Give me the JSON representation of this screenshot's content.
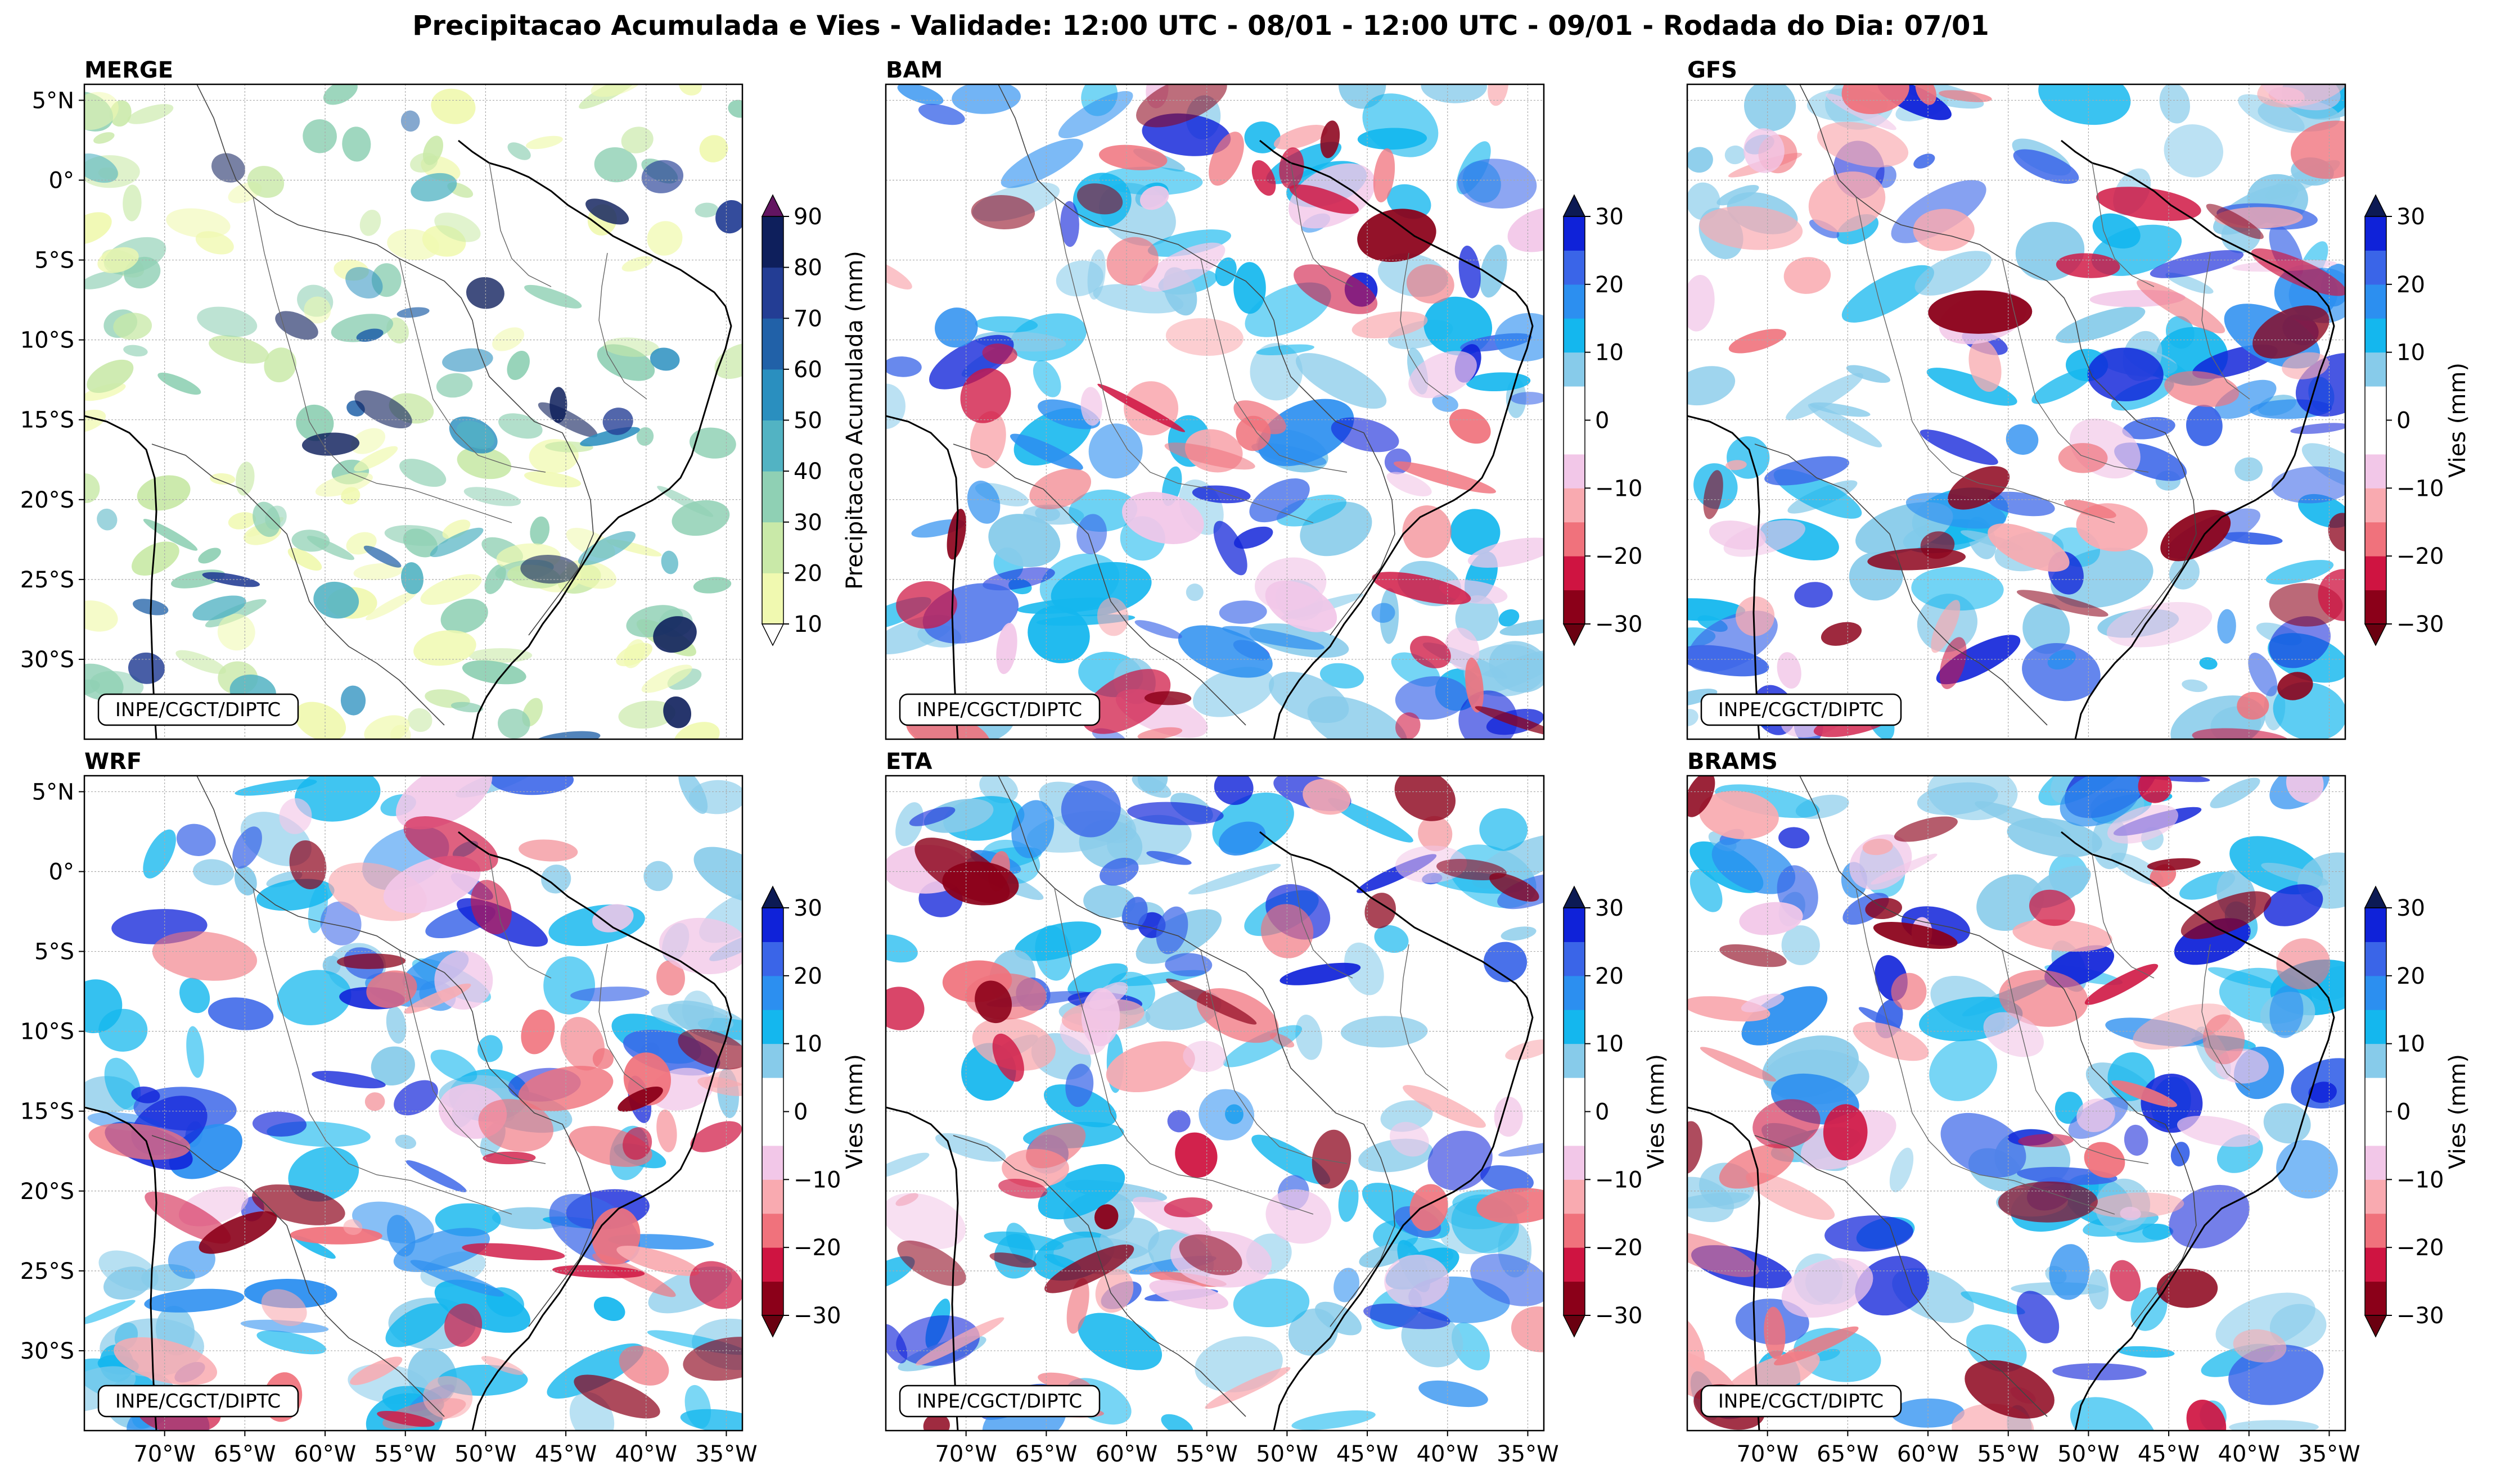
{
  "title": "Precipitacao Acumulada e Vies - Validade: 12:00 UTC - 08/01 - 12:00 UTC - 09/01 - Rodada do Dia: 07/01",
  "credit": "INPE/CGCT/DIPTC",
  "lat_ticks": [
    "5°N",
    "0°",
    "5°S",
    "10°S",
    "15°S",
    "20°S",
    "25°S",
    "30°S"
  ],
  "lon_ticks": [
    "70°W",
    "65°W",
    "60°W",
    "55°W",
    "50°W",
    "45°W",
    "40°W",
    "35°W"
  ],
  "map_extent": {
    "lon": [
      -75,
      -34
    ],
    "lat": [
      -35,
      6
    ]
  },
  "colorbars": {
    "precip": {
      "label": "Precipitacao Acumulada (mm)",
      "ticks": [
        "90",
        "80",
        "70",
        "60",
        "50",
        "40",
        "30",
        "20",
        "10"
      ],
      "colors": [
        "#f0f9b0",
        "#c9e9a8",
        "#8fd0b4",
        "#52b3c3",
        "#2a8fbf",
        "#2161a8",
        "#233d94",
        "#0e1f5c"
      ],
      "extend_max": "#631561",
      "extend_min": "#ffffff"
    },
    "bias": {
      "label": "Vies (mm)",
      "ticks": [
        "30",
        "20",
        "10",
        "0",
        "−10",
        "−20",
        "−30"
      ],
      "colors": [
        "#8b0019",
        "#cf1441",
        "#f0727c",
        "#f9aab0",
        "#f2c7e8",
        "#ffffff",
        "#ffffff",
        "#87cbea",
        "#14b7ee",
        "#2c8ff0",
        "#3a65e8",
        "#0f22d9"
      ],
      "extend_max": "#0c1a54",
      "extend_min": "#6a0010"
    }
  },
  "panels": [
    {
      "name": "MERGE",
      "type": "precip",
      "colorbar_label": "Precipitacao Acumulada (mm)"
    },
    {
      "name": "BAM",
      "type": "bias",
      "colorbar_label": ""
    },
    {
      "name": "GFS",
      "type": "bias",
      "colorbar_label": "Vies (mm)"
    },
    {
      "name": "WRF",
      "type": "bias",
      "colorbar_label": "Vies (mm)"
    },
    {
      "name": "ETA",
      "type": "bias",
      "colorbar_label": "Vies (mm)"
    },
    {
      "name": "BRAMS",
      "type": "bias",
      "colorbar_label": "Vies (mm)"
    }
  ]
}
